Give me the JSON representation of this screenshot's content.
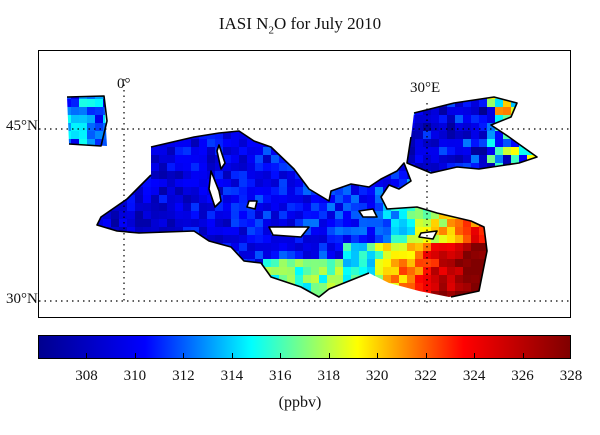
{
  "title": {
    "prefix": "IASI N",
    "subscript": "2",
    "suffix": "O for July 2010"
  },
  "map": {
    "region": "Mediterranean Sea and Black Sea",
    "lat_labels": [
      {
        "value": 45,
        "text": "45°N"
      },
      {
        "value": 30,
        "text": "30°N"
      }
    ],
    "lon_labels": [
      {
        "value": 0,
        "text": "0°"
      },
      {
        "value": 30,
        "text": "30°E"
      }
    ],
    "gridlines": "dotted"
  },
  "colorbar": {
    "min": 306,
    "max": 328,
    "ticks": [
      "308",
      "310",
      "312",
      "314",
      "316",
      "318",
      "320",
      "322",
      "324",
      "326",
      "328"
    ],
    "unit": "(ppbv)",
    "colormap": [
      "#00008f",
      "#0000ff",
      "#00ffff",
      "#ffff00",
      "#ff0000",
      "#800000"
    ]
  }
}
